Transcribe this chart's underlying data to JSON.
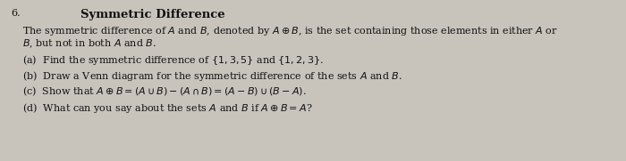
{
  "number": "6.",
  "title": "Symmetric Difference",
  "background_color": "#c8c4bc",
  "text_color": "#111111",
  "intro_line1": "The symmetric difference of $A$ and $B$, denoted by $A \\oplus B$, is the set containing those elements in either $A$ or",
  "intro_line2": "$B$, but not in both $A$ and $B$.",
  "part_a": "(a)  Find the symmetric difference of $\\{1, 3, 5\\}$ and $\\{1, 2, 3\\}$.",
  "part_b": "(b)  Draw a Venn diagram for the symmetric difference of the sets $A$ and $B$.",
  "part_c": "(c)  Show that $A \\oplus B = (A \\cup B) - (A \\cap B) = (A - B) \\cup (B - A)$.",
  "part_d": "(d)  What can you say about the sets $A$ and $B$ if $A \\oplus B = A$?",
  "figwidth": 7.0,
  "figheight": 1.81,
  "dpi": 100
}
